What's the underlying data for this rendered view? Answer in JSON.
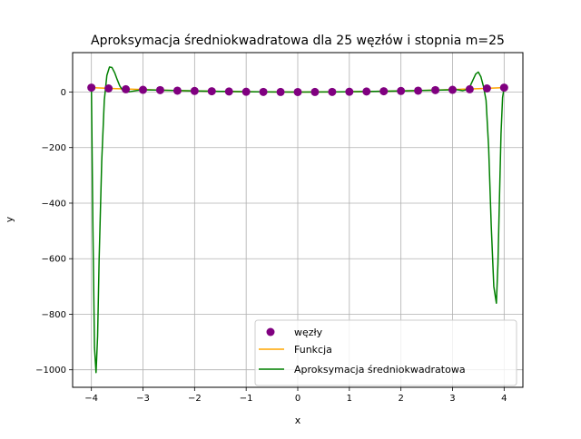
{
  "chart_data": {
    "type": "line",
    "title": "Aproksymacja średniokwadratowa dla 25 węzłów i stopnia m=25",
    "xlabel": "x",
    "ylabel": "y",
    "xlim": [
      -4.364,
      4.364
    ],
    "ylim": [
      -1063,
      142
    ],
    "xticks": [
      -4,
      -3,
      -2,
      -1,
      0,
      1,
      2,
      3,
      4
    ],
    "xtick_labels": [
      "−4",
      "−3",
      "−2",
      "−1",
      "0",
      "1",
      "2",
      "3",
      "4"
    ],
    "yticks": [
      -1000,
      -800,
      -600,
      -400,
      -200,
      0
    ],
    "ytick_labels": [
      "−1000",
      "−800",
      "−600",
      "−400",
      "−200",
      "0"
    ],
    "grid": true,
    "legend_position": "lower-right",
    "series": [
      {
        "name": "węzły",
        "kind": "scatter",
        "color": "#800080",
        "x": [
          -4.0,
          -3.667,
          -3.333,
          -3.0,
          -2.667,
          -2.333,
          -2.0,
          -1.667,
          -1.333,
          -1.0,
          -0.667,
          -0.333,
          0.0,
          0.333,
          0.667,
          1.0,
          1.333,
          1.667,
          2.0,
          2.333,
          2.667,
          3.0,
          3.333,
          3.667,
          4.0
        ],
        "y": [
          16,
          13,
          10,
          8,
          7,
          5,
          4,
          3,
          2,
          1,
          0.5,
          0.2,
          0,
          0.2,
          0.5,
          1,
          2,
          3,
          4,
          5,
          7,
          8,
          10,
          13,
          16
        ]
      },
      {
        "name": "Funkcja",
        "kind": "line",
        "color": "#ffa500",
        "x": [
          -4.0,
          -3.5,
          -3.0,
          -2.5,
          -2.0,
          -1.5,
          -1.0,
          -0.5,
          0.0,
          0.5,
          1.0,
          1.5,
          2.0,
          2.5,
          3.0,
          3.5,
          4.0
        ],
        "y": [
          16,
          12,
          9,
          6,
          4,
          2.5,
          1,
          0.3,
          0,
          0.3,
          1,
          2.5,
          4,
          6,
          9,
          12,
          16
        ]
      },
      {
        "name": "Aproksymacja średniokwadratowa",
        "kind": "line",
        "color": "#008000",
        "x": [
          -4.0,
          -3.97,
          -3.94,
          -3.91,
          -3.88,
          -3.85,
          -3.8,
          -3.75,
          -3.7,
          -3.65,
          -3.6,
          -3.55,
          -3.5,
          -3.45,
          -3.4,
          -3.35,
          -3.3,
          -3.2,
          -3.1,
          -3.0,
          -2.5,
          -2.0,
          -1.5,
          -1.0,
          -0.5,
          0.0,
          0.5,
          1.0,
          1.5,
          2.0,
          2.5,
          3.0,
          3.1,
          3.2,
          3.3,
          3.35,
          3.4,
          3.45,
          3.5,
          3.55,
          3.6,
          3.65,
          3.7,
          3.75,
          3.8,
          3.85,
          3.88,
          3.91,
          3.94,
          3.97,
          4.0
        ],
        "y": [
          16,
          -500,
          -920,
          -1010,
          -880,
          -600,
          -250,
          -30,
          60,
          90,
          88,
          70,
          45,
          22,
          8,
          2,
          0,
          3,
          6,
          8,
          6,
          4,
          2.5,
          1,
          0.3,
          0,
          0.3,
          1,
          2.5,
          4,
          6,
          8,
          8,
          5,
          10,
          25,
          45,
          65,
          72,
          55,
          20,
          -30,
          -200,
          -480,
          -700,
          -760,
          -620,
          -380,
          -150,
          -20,
          16
        ]
      }
    ]
  }
}
